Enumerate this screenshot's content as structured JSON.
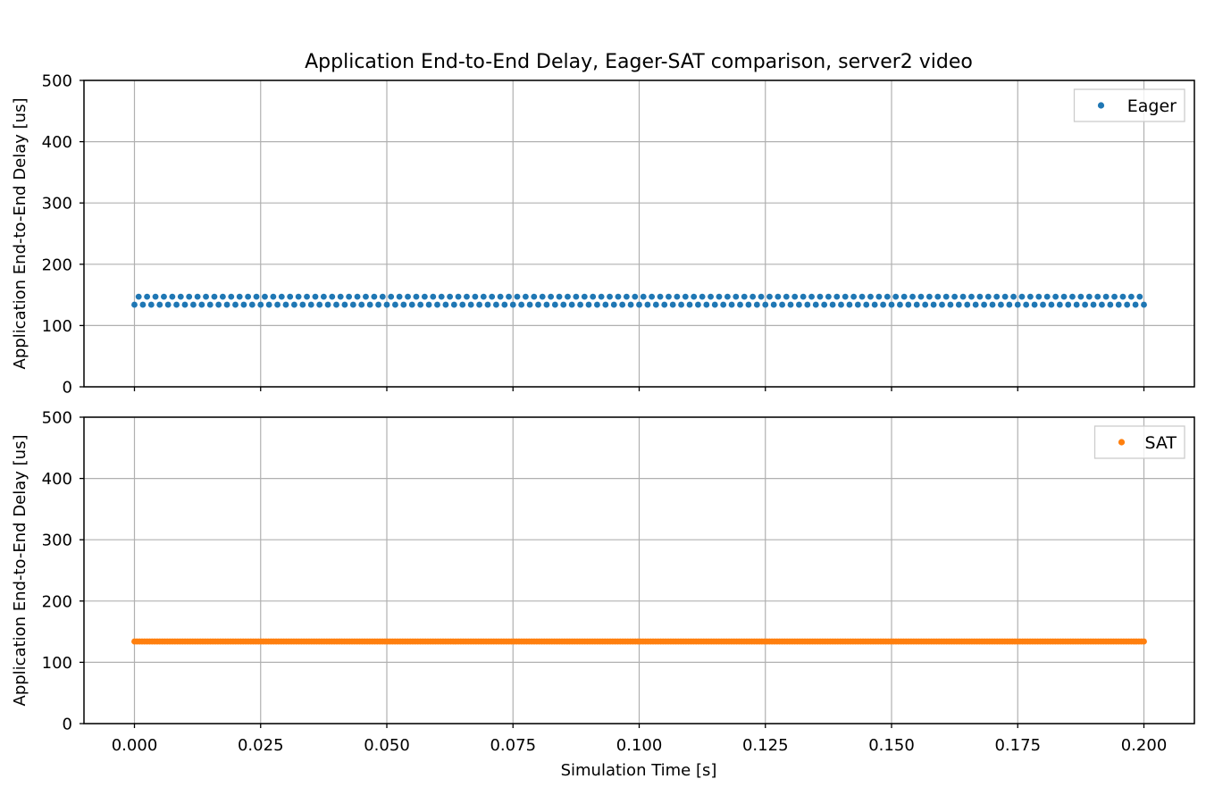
{
  "chart_data": {
    "title": "Application End-to-End Delay, Eager-SAT comparison, server2 video",
    "type": "scatter",
    "xlabel": "Simulation Time [s]",
    "x_ticks": [
      "0.000",
      "0.025",
      "0.050",
      "0.075",
      "0.100",
      "0.125",
      "0.150",
      "0.175",
      "0.200"
    ],
    "xlim": [
      -0.01,
      0.21
    ],
    "grid": true,
    "shared_x": true,
    "subplots": [
      {
        "ylabel": "Application End-to-End Delay [us]",
        "ylim": [
          0,
          500
        ],
        "y_ticks": [
          "0",
          "100",
          "200",
          "300",
          "400",
          "500"
        ],
        "legend_position": "top-right",
        "series": [
          {
            "name": "Eager",
            "color": "#1f77b4",
            "marker": "point",
            "x_range": [
              0.0,
              0.2
            ],
            "point_count": 241,
            "y_pattern": [
              134,
              147
            ],
            "note_values": "alternating between ~134 and ~147 us"
          }
        ]
      },
      {
        "ylabel": "Application End-to-End Delay [us]",
        "ylim": [
          0,
          500
        ],
        "y_ticks": [
          "0",
          "100",
          "200",
          "300",
          "400",
          "500"
        ],
        "legend_position": "top-right",
        "series": [
          {
            "name": "SAT",
            "color": "#ff7f0e",
            "marker": "point",
            "x_range": [
              0.0,
              0.2
            ],
            "point_count": 400,
            "y_pattern": [
              134
            ]
          }
        ]
      }
    ]
  }
}
